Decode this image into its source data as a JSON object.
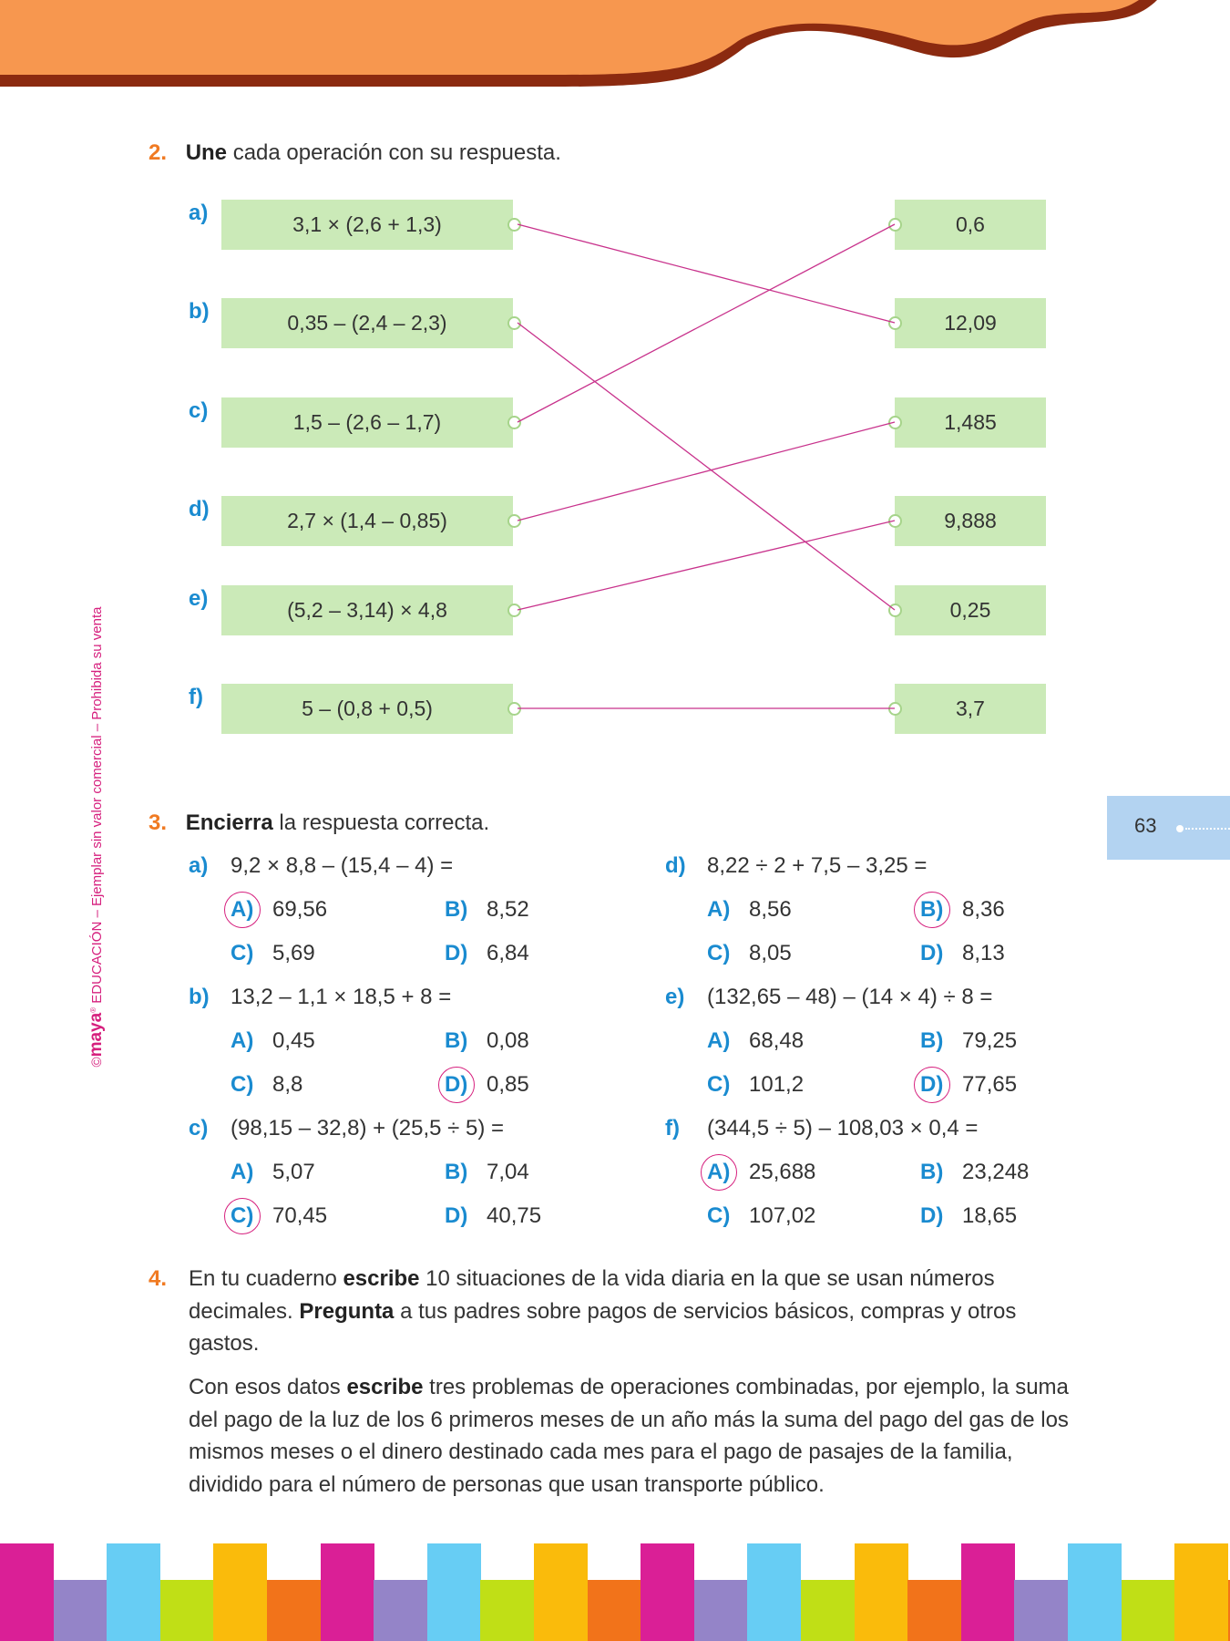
{
  "watermark": {
    "brand": "maya",
    "text": "© maya® EDUCACIÓN – Ejemplar sin valor comercial – Prohibida su venta",
    "line": "EDUCACIÓN – Ejemplar sin valor comercial – Prohibida su venta",
    "copyright": "©"
  },
  "page_number": "63",
  "q2": {
    "number": "2.",
    "verb": "Une",
    "rest": " cada operación con su respuesta.",
    "left": [
      {
        "letter": "a)",
        "expr": "3,1 × (2,6 + 1,3)"
      },
      {
        "letter": "b)",
        "expr": "0,35 – (2,4 – 2,3)"
      },
      {
        "letter": "c)",
        "expr": "1,5 – (2,6 – 1,7)"
      },
      {
        "letter": "d)",
        "expr": "2,7 × (1,4 – 0,85)"
      },
      {
        "letter": "e)",
        "expr": "(5,2 – 3,14) × 4,8"
      },
      {
        "letter": "f)",
        "expr": "5 – (0,8 + 0,5)"
      }
    ],
    "right": [
      "0,6",
      "12,09",
      "1,485",
      "9,888",
      "0,25",
      "3,7"
    ],
    "matches": [
      1,
      4,
      0,
      2,
      3,
      5
    ],
    "line_color": "#c8328c"
  },
  "q3": {
    "number": "3.",
    "verb": "Encierra",
    "rest": " la respuesta correcta.",
    "items": [
      {
        "letter": "a)",
        "expr": "9,2 × 8,8  –  (15,4  –  4) =",
        "options": [
          [
            "A)",
            "69,56"
          ],
          [
            "B)",
            "8,52"
          ],
          [
            "C)",
            "5,69"
          ],
          [
            "D)",
            "6,84"
          ]
        ],
        "circled": 0
      },
      {
        "letter": "b)",
        "expr": "13,2  –  1,1 × 18,5 + 8 =",
        "options": [
          [
            "A)",
            "0,45"
          ],
          [
            "B)",
            "0,08"
          ],
          [
            "C)",
            "8,8"
          ],
          [
            "D)",
            "0,85"
          ]
        ],
        "circled": 3
      },
      {
        "letter": "c)",
        "expr": "(98,15  –  32,8) + (25,5 ÷ 5) =",
        "options": [
          [
            "A)",
            "5,07"
          ],
          [
            "B)",
            "7,04"
          ],
          [
            "C)",
            "70,45"
          ],
          [
            "D)",
            "40,75"
          ]
        ],
        "circled": 2
      },
      {
        "letter": "d)",
        "expr": "8,22 ÷ 2 + 7,5  –  3,25 =",
        "options": [
          [
            "A)",
            "8,56"
          ],
          [
            "B)",
            "8,36"
          ],
          [
            "C)",
            "8,05"
          ],
          [
            "D)",
            "8,13"
          ]
        ],
        "circled": 1
      },
      {
        "letter": "e)",
        "expr": "(132,65 – 48) – (14 × 4) ÷ 8 =",
        "options": [
          [
            "A)",
            "68,48"
          ],
          [
            "B)",
            "79,25"
          ],
          [
            "C)",
            "101,2"
          ],
          [
            "D)",
            "77,65"
          ]
        ],
        "circled": 3
      },
      {
        "letter": "f)",
        "expr": "(344,5 ÷ 5) – 108,03 × 0,4 =",
        "options": [
          [
            "A)",
            "25,688"
          ],
          [
            "B)",
            "23,248"
          ],
          [
            "C)",
            "107,02"
          ],
          [
            "D)",
            "18,65"
          ]
        ],
        "circled": 0
      }
    ]
  },
  "q4": {
    "number": "4.",
    "p1": [
      {
        "t": "En tu cuaderno ",
        "b": false
      },
      {
        "t": "escribe",
        "b": true
      },
      {
        "t": " 10 situaciones de la vida diaria en la que se usan números decimales. ",
        "b": false
      },
      {
        "t": "Pregunta",
        "b": true
      },
      {
        "t": " a tus padres sobre pagos de servicios básicos, compras y otros gastos.",
        "b": false
      }
    ],
    "p2": [
      {
        "t": "Con esos datos ",
        "b": false
      },
      {
        "t": "escribe",
        "b": true
      },
      {
        "t": " tres problemas de operaciones combinadas, por ejemplo, la suma del pago de la luz de los 6 primeros meses de un año más la suma del pago del gas de los mismos meses o el dinero destinado cada mes para el pago de pasajes de la familia, dividido para el número de personas que usan transporte público.",
        "b": false
      }
    ]
  },
  "colors": {
    "header": "#f7974f",
    "header_dark": "#8b2a10",
    "stripes": [
      "#da1f96",
      "#9484c8",
      "#67cdf4",
      "#c0df16",
      "#fabb0b",
      "#f2731a"
    ]
  }
}
